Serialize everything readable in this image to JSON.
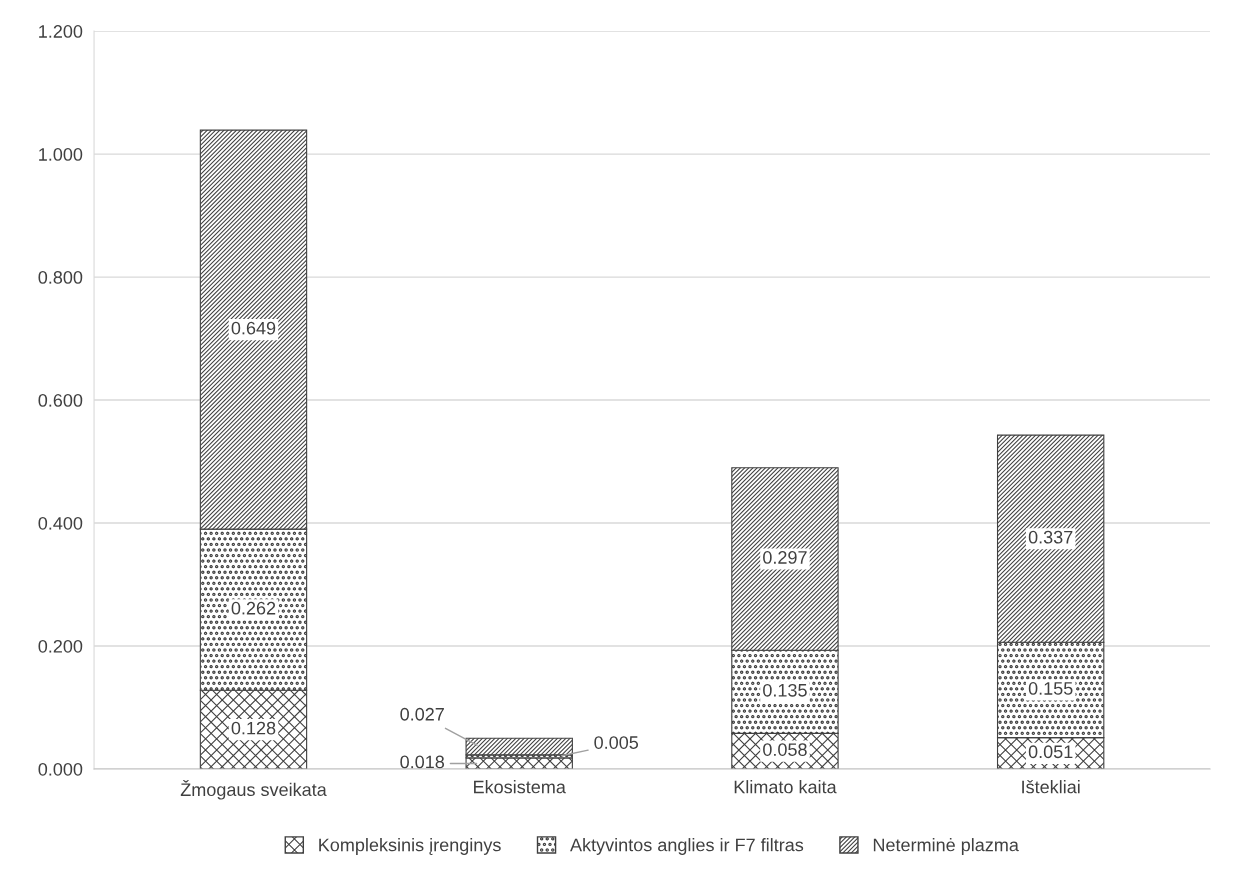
{
  "chart_data": {
    "type": "bar",
    "stacked": true,
    "categories": [
      "Žmogaus sveikata",
      "Ekosistema",
      "Klimato kaita",
      "Ištekliai"
    ],
    "series": [
      {
        "name": "Kompleksinis įrenginys",
        "color": "#404040",
        "values": [
          0.128,
          0.018,
          0.058,
          0.051
        ]
      },
      {
        "name": "Aktyvintos anglies ir F7 filtras",
        "color": "#404040",
        "values": [
          0.262,
          0.005,
          0.135,
          0.155
        ]
      },
      {
        "name": "Neterminė plazma",
        "color": "#404040",
        "values": [
          0.649,
          0.027,
          0.297,
          0.337
        ]
      }
    ],
    "ylim": [
      0,
      1.2
    ],
    "yticks": [
      {
        "value": 0,
        "label": "0.000"
      },
      {
        "value": 0.2,
        "label": "0.200"
      },
      {
        "value": 0.4,
        "label": "0.400"
      },
      {
        "value": 0.6,
        "label": "0.600"
      },
      {
        "value": 0.8,
        "label": "0.800"
      },
      {
        "value": 1.0,
        "label": "1.000"
      },
      {
        "value": 1.2,
        "label": "1.200"
      }
    ],
    "grid": "y",
    "legend": "bottom",
    "data_labels": true
  }
}
